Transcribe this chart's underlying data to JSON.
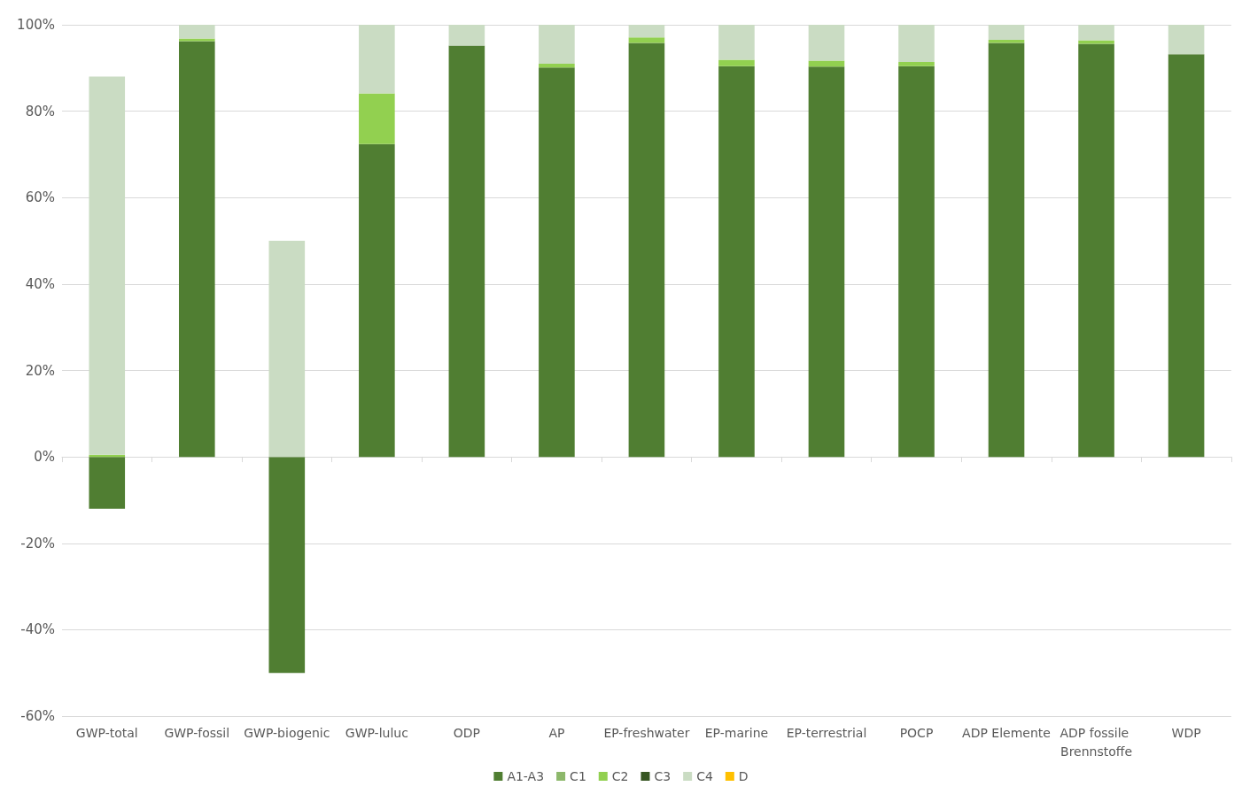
{
  "chart_data": {
    "type": "bar",
    "stacked": true,
    "categories": [
      "GWP-total",
      "GWP-fossil",
      "GWP-biogenic",
      "GWP-luluc",
      "ODP",
      "AP",
      "EP-freshwater",
      "EP-marine",
      "EP-terrestrial",
      "POCP",
      "ADP Elemente",
      "ADP fossile Brennstoffe",
      "WDP"
    ],
    "series": [
      {
        "name": "A1-A3",
        "color": "#507e32",
        "values": [
          -12,
          96.2,
          -50,
          72.4,
          95.2,
          90.1,
          95.8,
          90.4,
          90.3,
          90.4,
          95.8,
          95.6,
          93.2
        ]
      },
      {
        "name": "C1",
        "color": "#8db86b",
        "values": [
          0,
          0,
          0,
          0,
          0,
          0,
          0,
          0,
          0,
          0,
          0,
          0,
          0
        ]
      },
      {
        "name": "C2",
        "color": "#92d050",
        "values": [
          0.5,
          0.6,
          0,
          11.7,
          0,
          0.9,
          1.3,
          1.5,
          1.4,
          1,
          0.7,
          0.8,
          0
        ]
      },
      {
        "name": "C3",
        "color": "#375623",
        "values": [
          0,
          0,
          0,
          0,
          0,
          0,
          0,
          0,
          0,
          0,
          0,
          0,
          0
        ]
      },
      {
        "name": "C4",
        "color": "#cadcc3",
        "values": [
          87.5,
          3.2,
          50,
          15.9,
          4.8,
          9,
          2.9,
          8.1,
          8.3,
          8.6,
          3.5,
          3.6,
          6.8
        ]
      },
      {
        "name": "D",
        "color": "#ffc000",
        "values": [
          0,
          0,
          0,
          0,
          0,
          0,
          0,
          0,
          0,
          0,
          0,
          0,
          0
        ]
      }
    ],
    "ylim": [
      -60,
      100
    ],
    "yticks": [
      {
        "value": -60,
        "label": "-60%"
      },
      {
        "value": -40,
        "label": "-40%"
      },
      {
        "value": -20,
        "label": "-20%"
      },
      {
        "value": 0,
        "label": "0%"
      },
      {
        "value": 20,
        "label": "20%"
      },
      {
        "value": 40,
        "label": "40%"
      },
      {
        "value": 60,
        "label": "60%"
      },
      {
        "value": 80,
        "label": "80%"
      },
      {
        "value": 100,
        "label": "100%"
      }
    ],
    "grid": "y",
    "legend": "bottom"
  }
}
